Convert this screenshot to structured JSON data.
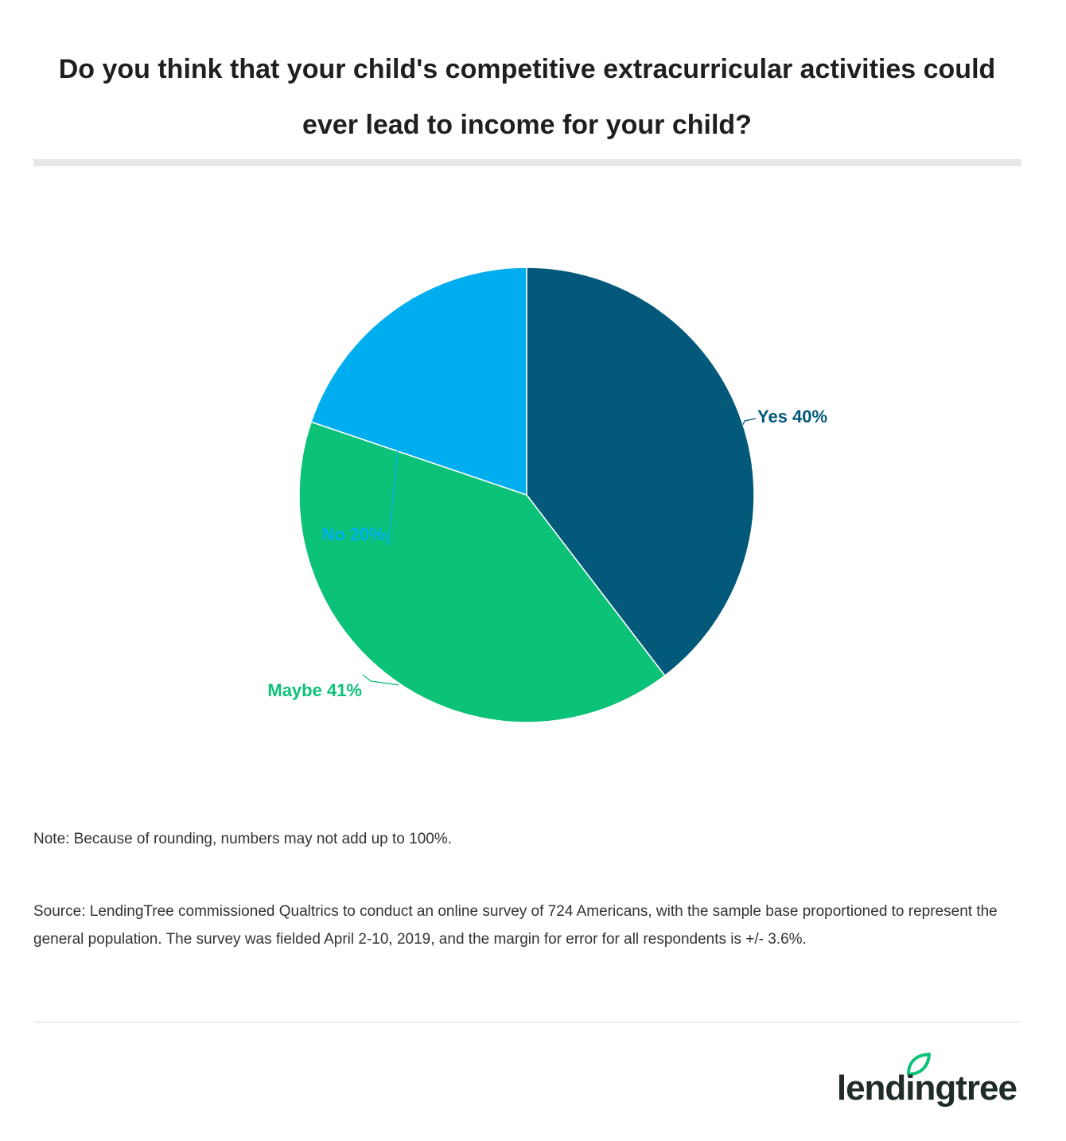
{
  "chart_data": {
    "type": "pie",
    "title": "Do you think that your child's competitive extracurricular activities could ever lead to income for your child?",
    "slices": [
      {
        "label": "Yes",
        "value": 40,
        "display": "Yes 40%",
        "color": "#03597a"
      },
      {
        "label": "Maybe",
        "value": 41,
        "display": "Maybe 41%",
        "color": "#0cc178"
      },
      {
        "label": "No",
        "value": 20,
        "display": "No 20%",
        "color": "#00aeef"
      }
    ],
    "start_angle_deg": 0,
    "direction": "clockwise",
    "note": "Note: Because of rounding, numbers may not add up to 100%.",
    "source": "Source: LendingTree commissioned Qualtrics to conduct an online survey of 724 Americans, with the sample base proportioned to represent the general population. The survey was fielded April 2-10, 2019, and the margin for error for all respondents is +/- 3.6%."
  },
  "brand": {
    "logo_text": "lendingtree",
    "logo_color": "#1f2a2a",
    "leaf_color": "#0cc178"
  }
}
